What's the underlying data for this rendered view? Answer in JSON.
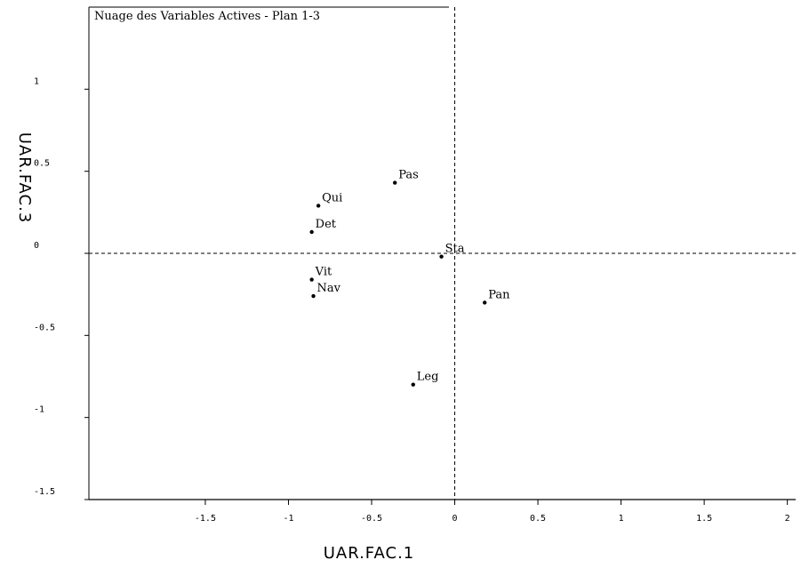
{
  "chart_data": {
    "type": "scatter",
    "title": "Nuage des Variables Actives - Plan 1-3",
    "xlabel": "UAR.FAC.1",
    "ylabel": "UAR.FAC.3",
    "xlim": [
      -2.2,
      2.05
    ],
    "ylim": [
      -1.5,
      1.5
    ],
    "xticks": [
      -1.5,
      -1,
      -0.5,
      0,
      0.5,
      1,
      1.5,
      2
    ],
    "xtick_labels": [
      "-1.5",
      "-1",
      "-0.5",
      "0",
      "0.5",
      "1",
      "1.5",
      "2"
    ],
    "yticks": [
      1,
      0.5,
      0,
      -0.5,
      -1,
      -1.5
    ],
    "ytick_labels": [
      "1",
      "0.5",
      "0",
      "-0.5",
      "-1",
      "-1.5"
    ],
    "reference_lines": {
      "x": 0,
      "y": 0,
      "style": "dashed"
    },
    "grid": false,
    "points": [
      {
        "label": "Pas",
        "x": -0.36,
        "y": 0.43
      },
      {
        "label": "Qui",
        "x": -0.82,
        "y": 0.29
      },
      {
        "label": "Det",
        "x": -0.86,
        "y": 0.13
      },
      {
        "label": "Sta",
        "x": -0.08,
        "y": -0.02
      },
      {
        "label": "Vit",
        "x": -0.86,
        "y": -0.16
      },
      {
        "label": "Nav",
        "x": -0.85,
        "y": -0.26
      },
      {
        "label": "Pan",
        "x": 0.18,
        "y": -0.3
      },
      {
        "label": "Leg",
        "x": -0.25,
        "y": -0.8
      }
    ]
  }
}
